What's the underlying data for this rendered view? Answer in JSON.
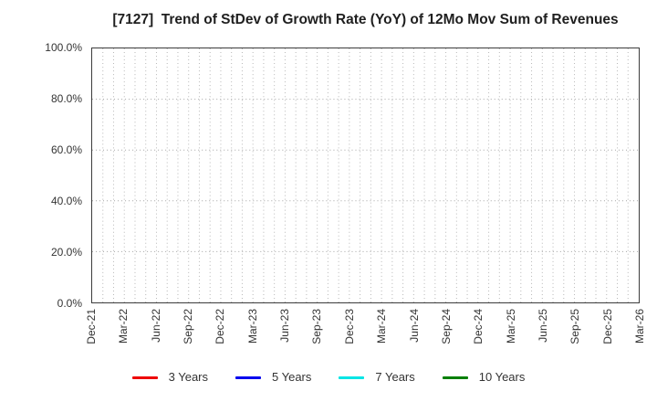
{
  "chart": {
    "title": "[7127]  Trend of StDev of Growth Rate (YoY) of 12Mo Mov Sum of Revenues"
  },
  "chart_data": {
    "type": "line",
    "title": "[7127]  Trend of StDev of Growth Rate (YoY) of 12Mo Mov Sum of Revenues",
    "xlabel": "",
    "ylabel": "",
    "ylim": [
      0,
      100
    ],
    "grid": true,
    "legend_position": "bottom-center",
    "y_ticks": [
      {
        "value": 0,
        "label": "0.0%"
      },
      {
        "value": 20,
        "label": "20.0%"
      },
      {
        "value": 40,
        "label": "40.0%"
      },
      {
        "value": 60,
        "label": "60.0%"
      },
      {
        "value": 80,
        "label": "80.0%"
      },
      {
        "value": 100,
        "label": "100.0%"
      }
    ],
    "x_tick_labels": [
      "Dec-21",
      "Mar-22",
      "Jun-22",
      "Sep-22",
      "Dec-22",
      "Mar-23",
      "Jun-23",
      "Sep-23",
      "Dec-23",
      "Mar-24",
      "Jun-24",
      "Sep-24",
      "Dec-24",
      "Mar-25",
      "Jun-25",
      "Sep-25",
      "Dec-25",
      "Mar-26"
    ],
    "x_tick_interval_months": 3,
    "x_total_months": 51,
    "series": [
      {
        "name": "3 Years",
        "color": "#ee0000",
        "values": []
      },
      {
        "name": "5 Years",
        "color": "#0000ee",
        "values": []
      },
      {
        "name": "7 Years",
        "color": "#00e5e5",
        "values": []
      },
      {
        "name": "10 Years",
        "color": "#007f00",
        "values": []
      }
    ],
    "colors": {
      "grid_vertical": "#b8b8b8",
      "grid_horizontal": "#a3a3a3",
      "axis_border": "#3c3c3c",
      "title_text": "#1f1f1f",
      "tick_text": "#333333"
    }
  }
}
